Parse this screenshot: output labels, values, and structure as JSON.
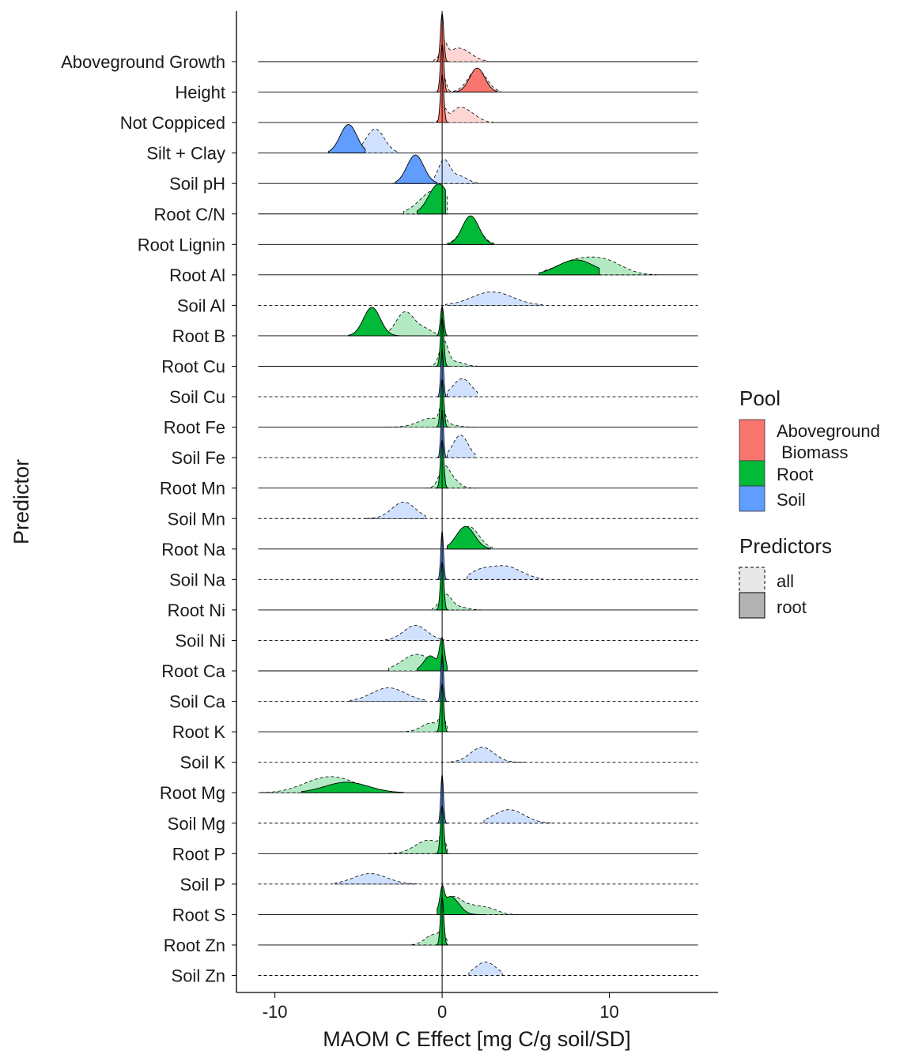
{
  "chart_data": {
    "type": "ridgeline-density",
    "xlabel": "MAOM C Effect [mg C/g soil/SD]",
    "ylabel": "Predictor",
    "xlim": [
      -12.3,
      16.5
    ],
    "xticks": [
      -10,
      0,
      10
    ],
    "xtick_labels": [
      "-10",
      "0",
      "10"
    ],
    "reference_line_x": 0,
    "legend": {
      "position": "right",
      "pool_title": "Pool",
      "pools": [
        {
          "key": "Aboveground",
          "label_line1": "Aboveground",
          "label_line2": " Biomass",
          "color": "#F8766D"
        },
        {
          "key": "Root",
          "label": "Root",
          "color": "#00BA38"
        },
        {
          "key": "Soil",
          "label": "Soil",
          "color": "#619CFF"
        }
      ],
      "predictors_title": "Predictors",
      "predictors": [
        {
          "key": "all",
          "label": "all",
          "linestyle": "dashed",
          "fill": "#e8e8e8"
        },
        {
          "key": "root",
          "label": "root",
          "linestyle": "solid",
          "fill": "#b3b3b3"
        }
      ]
    },
    "series": [
      {
        "name": "Aboveground Growth",
        "pool": "Aboveground",
        "base_dashed": false,
        "all": {
          "peaks": [
            [
              0.1,
              0.18,
              0.5
            ],
            [
              1.0,
              0.7,
              0.45
            ]
          ],
          "range": [
            -0.5,
            2.6
          ]
        },
        "root": {
          "peaks": [
            [
              0,
              0.1,
              1.6
            ]
          ],
          "range": [
            -0.4,
            0.4
          ]
        }
      },
      {
        "name": "Height",
        "pool": "Aboveground",
        "base_dashed": false,
        "all": {
          "peaks": [
            [
              0.1,
              0.15,
              0.5
            ],
            [
              2.1,
              0.55,
              0.75
            ]
          ],
          "range": [
            -0.5,
            3.5
          ]
        },
        "root": {
          "peaks": [
            [
              0,
              0.1,
              1.6
            ],
            [
              2.1,
              0.45,
              0.8
            ]
          ],
          "range": [
            -0.4,
            3.3
          ]
        }
      },
      {
        "name": "Not Coppiced",
        "pool": "Aboveground",
        "base_dashed": false,
        "all": {
          "peaks": [
            [
              0.1,
              0.18,
              0.4
            ],
            [
              1.0,
              0.5,
              0.45
            ],
            [
              1.8,
              0.5,
              0.2
            ]
          ],
          "range": [
            -2,
            3.2
          ]
        },
        "root": {
          "peaks": [
            [
              0,
              0.1,
              1.6
            ]
          ],
          "range": [
            -0.4,
            0.4
          ]
        }
      },
      {
        "name": "Silt + Clay",
        "pool": "Soil",
        "base_dashed": false,
        "all": {
          "peaks": [
            [
              -4,
              0.55,
              0.8
            ]
          ],
          "range": [
            -5.6,
            -2.6
          ]
        },
        "root": {
          "peaks": [
            [
              -5.6,
              0.5,
              0.95
            ]
          ],
          "range": [
            -6.8,
            -4.6
          ]
        }
      },
      {
        "name": "Soil pH",
        "pool": "Soil",
        "base_dashed": false,
        "all": {
          "peaks": [
            [
              0.1,
              0.35,
              0.75
            ],
            [
              1.0,
              0.5,
              0.25
            ]
          ],
          "range": [
            -3,
            2.1
          ]
        },
        "root": {
          "peaks": [
            [
              -1.6,
              0.5,
              0.95
            ]
          ],
          "range": [
            -2.8,
            -0.3
          ]
        }
      },
      {
        "name": "Root C/N",
        "pool": "Root",
        "base_dashed": false,
        "all": {
          "peaks": [
            [
              -0.4,
              0.9,
              0.8
            ]
          ],
          "range": [
            -2.3,
            0.3
          ]
        },
        "root": {
          "peaks": [
            [
              -0.2,
              0.6,
              1.0
            ]
          ],
          "range": [
            -1.5,
            0.2
          ]
        }
      },
      {
        "name": "Root Lignin",
        "pool": "Root",
        "base_dashed": false,
        "all": {
          "peaks": [
            [
              1.7,
              0.55,
              0.8
            ]
          ],
          "range": [
            0.3,
            3.2
          ]
        },
        "root": {
          "peaks": [
            [
              1.7,
              0.5,
              0.95
            ]
          ],
          "range": [
            0.4,
            3.0
          ]
        }
      },
      {
        "name": "Root Al",
        "pool": "Root",
        "base_dashed": false,
        "all": {
          "peaks": [
            [
              8.2,
              1.3,
              0.5
            ],
            [
              10.0,
              1.0,
              0.3
            ]
          ],
          "range": [
            6,
            12.8
          ]
        },
        "root": {
          "peaks": [
            [
              8.0,
              1.1,
              0.5
            ]
          ],
          "range": [
            5.8,
            9.4
          ]
        }
      },
      {
        "name": "Soil Al",
        "pool": "Soil",
        "base_dashed": true,
        "all": {
          "peaks": [
            [
              3.0,
              1.2,
              0.45
            ]
          ],
          "range": [
            0.2,
            6.0
          ]
        },
        "root": null
      },
      {
        "name": "Root B",
        "pool": "Root",
        "base_dashed": false,
        "all": {
          "peaks": [
            [
              -2.2,
              0.55,
              0.8
            ],
            [
              -1.0,
              0.45,
              0.2
            ]
          ],
          "range": [
            -3.2,
            0.4
          ]
        },
        "root": {
          "peaks": [
            [
              -4.2,
              0.5,
              0.95
            ],
            [
              0,
              0.1,
              1.0
            ]
          ],
          "range": [
            -5.6,
            0.3
          ]
        }
      },
      {
        "name": "Root Cu",
        "pool": "Root",
        "base_dashed": false,
        "all": {
          "peaks": [
            [
              0.1,
              0.25,
              0.8
            ],
            [
              0.8,
              0.5,
              0.15
            ]
          ],
          "range": [
            -1.5,
            2.1
          ]
        },
        "root": {
          "peaks": [
            [
              0,
              0.1,
              1.6
            ]
          ],
          "range": [
            -0.4,
            0.4
          ]
        }
      },
      {
        "name": "Soil Cu",
        "pool": "Soil",
        "base_dashed": true,
        "all": {
          "peaks": [
            [
              1.2,
              0.55,
              0.6
            ]
          ],
          "range": [
            0.3,
            2.1
          ]
        },
        "root": {
          "peaks": [
            [
              0,
              0.08,
              1.6
            ]
          ],
          "range": [
            -0.3,
            0.3
          ]
        }
      },
      {
        "name": "Root Fe",
        "pool": "Root",
        "base_dashed": false,
        "all": {
          "peaks": [
            [
              -0.6,
              0.8,
              0.3
            ],
            [
              0,
              0.15,
              0.6
            ]
          ],
          "range": [
            -3.5,
            2
          ]
        },
        "root": {
          "peaks": [
            [
              0,
              0.1,
              1.6
            ]
          ],
          "range": [
            -0.4,
            0.4
          ]
        }
      },
      {
        "name": "Soil Fe",
        "pool": "Soil",
        "base_dashed": true,
        "all": {
          "peaks": [
            [
              1.1,
              0.45,
              0.75
            ]
          ],
          "range": [
            0.3,
            2.0
          ]
        },
        "root": {
          "peaks": [
            [
              0,
              0.08,
              1.6
            ]
          ],
          "range": [
            -0.3,
            0.3
          ]
        }
      },
      {
        "name": "Root Mn",
        "pool": "Root",
        "base_dashed": false,
        "all": {
          "peaks": [
            [
              0.1,
              0.3,
              0.6
            ],
            [
              0.6,
              0.4,
              0.3
            ]
          ],
          "range": [
            -1,
            2.0
          ]
        },
        "root": {
          "peaks": [
            [
              0,
              0.1,
              1.6
            ]
          ],
          "range": [
            -0.4,
            0.4
          ]
        }
      },
      {
        "name": "Soil Mn",
        "pool": "Soil",
        "base_dashed": true,
        "all": {
          "peaks": [
            [
              -2.3,
              0.7,
              0.55
            ]
          ],
          "range": [
            -4.5,
            -1.0
          ]
        },
        "root": null
      },
      {
        "name": "Root Na",
        "pool": "Root",
        "base_dashed": false,
        "all": {
          "peaks": [
            [
              1.6,
              0.6,
              0.75
            ]
          ],
          "range": [
            0.5,
            3.0
          ]
        },
        "root": {
          "peaks": [
            [
              1.4,
              0.55,
              0.75
            ]
          ],
          "range": [
            0.3,
            2.9
          ]
        }
      },
      {
        "name": "Soil Na",
        "pool": "Soil",
        "base_dashed": true,
        "all": {
          "peaks": [
            [
              3.7,
              1.0,
              0.45
            ],
            [
              2.2,
              0.6,
              0.2
            ]
          ],
          "range": [
            1.5,
            6.0
          ]
        },
        "root": {
          "peaks": [
            [
              0,
              0.08,
              1.6
            ]
          ],
          "range": [
            -0.3,
            0.3
          ]
        }
      },
      {
        "name": "Root Ni",
        "pool": "Root",
        "base_dashed": false,
        "all": {
          "peaks": [
            [
              0.2,
              0.35,
              0.5
            ],
            [
              1.0,
              0.5,
              0.1
            ]
          ],
          "range": [
            -0.6,
            2.3
          ]
        },
        "root": {
          "peaks": [
            [
              0,
              0.1,
              1.6
            ]
          ],
          "range": [
            -0.4,
            0.4
          ]
        }
      },
      {
        "name": "Soil Ni",
        "pool": "Soil",
        "base_dashed": true,
        "all": {
          "peaks": [
            [
              -1.6,
              0.7,
              0.5
            ]
          ],
          "range": [
            -3.4,
            0.1
          ]
        },
        "root": null
      },
      {
        "name": "Root Ca",
        "pool": "Root",
        "base_dashed": false,
        "all": {
          "peaks": [
            [
              -1.5,
              0.9,
              0.55
            ]
          ],
          "range": [
            -3.2,
            0.3
          ]
        },
        "root": {
          "peaks": [
            [
              -0.7,
              0.4,
              0.5
            ],
            [
              0,
              0.15,
              1.0
            ]
          ],
          "range": [
            -1.5,
            0.3
          ]
        }
      },
      {
        "name": "Soil Ca",
        "pool": "Soil",
        "base_dashed": true,
        "all": {
          "peaks": [
            [
              -3.2,
              1.0,
              0.45
            ]
          ],
          "range": [
            -5.5,
            -1.0
          ]
        },
        "root": {
          "peaks": [
            [
              0,
              0.08,
              1.6
            ]
          ],
          "range": [
            -0.3,
            0.3
          ]
        }
      },
      {
        "name": "Root K",
        "pool": "Root",
        "base_dashed": false,
        "all": {
          "peaks": [
            [
              -0.6,
              0.6,
              0.3
            ],
            [
              0,
              0.15,
              0.5
            ]
          ],
          "range": [
            -2.5,
            0.3
          ]
        },
        "root": {
          "peaks": [
            [
              0,
              0.1,
              1.6
            ]
          ],
          "range": [
            -0.4,
            0.4
          ]
        }
      },
      {
        "name": "Soil K",
        "pool": "Soil",
        "base_dashed": true,
        "all": {
          "peaks": [
            [
              2.4,
              0.7,
              0.5
            ]
          ],
          "range": [
            0.5,
            5.0
          ]
        },
        "root": null
      },
      {
        "name": "Root Mg",
        "pool": "Root",
        "base_dashed": false,
        "all": {
          "peaks": [
            [
              -7.5,
              1.2,
              0.3
            ],
            [
              -6.0,
              1.2,
              0.35
            ]
          ],
          "range": [
            -10.8,
            -3.7
          ]
        },
        "root": {
          "peaks": [
            [
              -5.7,
              1.3,
              0.35
            ]
          ],
          "range": [
            -8.4,
            -2.3
          ]
        }
      },
      {
        "name": "Soil Mg",
        "pool": "Soil",
        "base_dashed": true,
        "all": {
          "peaks": [
            [
              4.0,
              0.9,
              0.45
            ]
          ],
          "range": [
            2.5,
            6.5
          ]
        },
        "root": {
          "peaks": [
            [
              0,
              0.08,
              1.6
            ]
          ],
          "range": [
            -0.3,
            0.3
          ]
        }
      },
      {
        "name": "Root P",
        "pool": "Root",
        "base_dashed": false,
        "all": {
          "peaks": [
            [
              -0.8,
              0.8,
              0.45
            ],
            [
              0,
              0.15,
              0.4
            ]
          ],
          "range": [
            -3.2,
            0.3
          ]
        },
        "root": {
          "peaks": [
            [
              0,
              0.1,
              1.6
            ]
          ],
          "range": [
            -0.4,
            0.4
          ]
        }
      },
      {
        "name": "Soil P",
        "pool": "Soil",
        "base_dashed": true,
        "all": {
          "peaks": [
            [
              -4.3,
              1.0,
              0.35
            ]
          ],
          "range": [
            -6.4,
            -1.5
          ]
        },
        "root": null
      },
      {
        "name": "Root S",
        "pool": "Root",
        "base_dashed": false,
        "all": {
          "peaks": [
            [
              0.6,
              0.5,
              0.5
            ],
            [
              1.8,
              0.8,
              0.3
            ],
            [
              3.0,
              0.5,
              0.1
            ]
          ],
          "range": [
            0,
            4.5
          ]
        },
        "root": {
          "peaks": [
            [
              0.5,
              0.5,
              0.6
            ],
            [
              0,
              0.12,
              0.6
            ]
          ],
          "range": [
            -0.3,
            2.5
          ]
        }
      },
      {
        "name": "Root Zn",
        "pool": "Root",
        "base_dashed": false,
        "all": {
          "peaks": [
            [
              -0.5,
              0.5,
              0.35
            ],
            [
              0,
              0.15,
              0.4
            ]
          ],
          "range": [
            -1.8,
            0.3
          ]
        },
        "root": {
          "peaks": [
            [
              0,
              0.1,
              1.6
            ]
          ],
          "range": [
            -0.4,
            0.4
          ]
        }
      },
      {
        "name": "Soil Zn",
        "pool": "Soil",
        "base_dashed": true,
        "all": {
          "peaks": [
            [
              2.6,
              0.6,
              0.45
            ]
          ],
          "range": [
            1.6,
            3.6
          ]
        },
        "root": null
      }
    ]
  }
}
